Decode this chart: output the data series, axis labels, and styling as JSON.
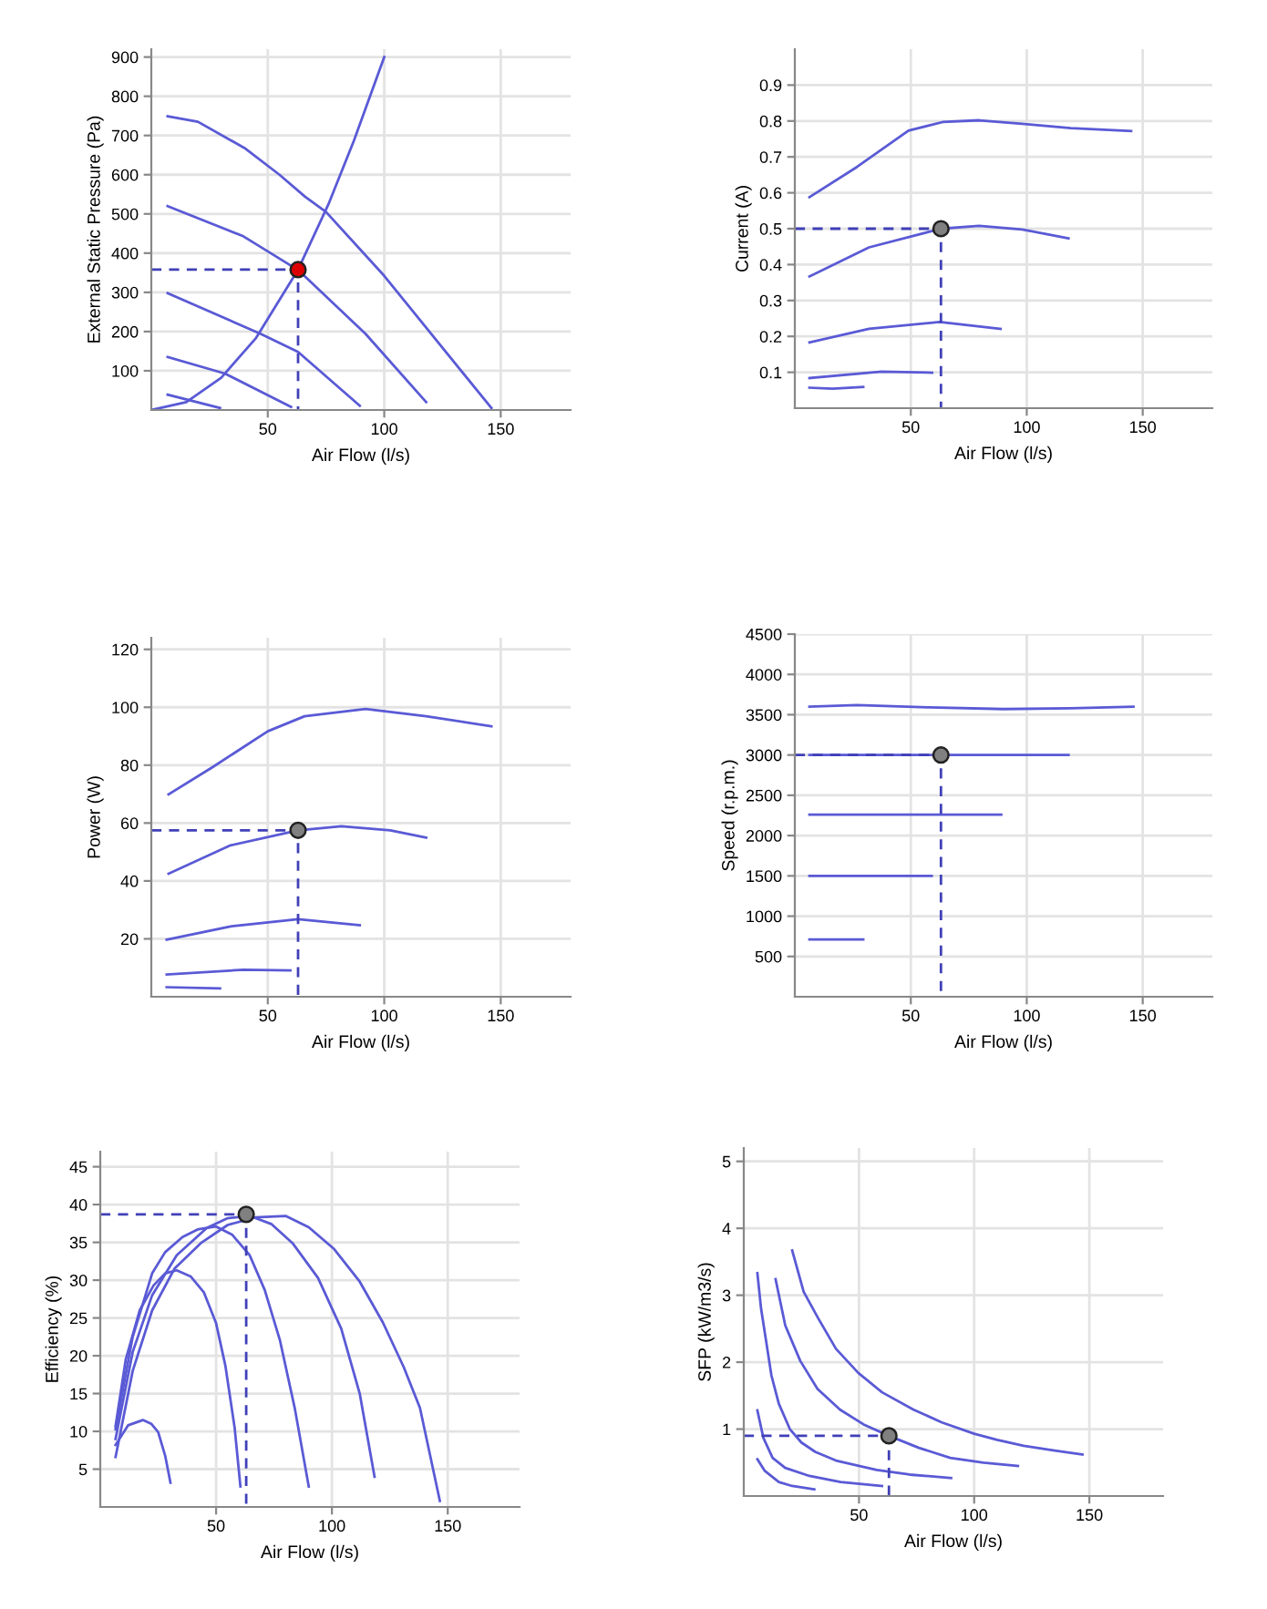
{
  "chart_data": [
    {
      "type": "line",
      "xlabel": "Air Flow (l/s)",
      "ylabel": "External Static Pressure (Pa)",
      "xlim": [
        0,
        180
      ],
      "ylim": [
        0,
        920
      ],
      "xticks": [
        50,
        100,
        150
      ],
      "yticks": [
        100,
        200,
        300,
        400,
        500,
        600,
        700,
        800,
        900
      ],
      "grid": true,
      "series": [
        {
          "color": "#5a5ad6",
          "x": [
            7,
            20,
            40,
            55,
            66,
            75,
            100,
            118,
            146
          ],
          "values": [
            749,
            735,
            668,
            600,
            544,
            505,
            342,
            210,
            5
          ]
        },
        {
          "color": "#5a5ad6",
          "x": [
            7,
            39.5,
            63,
            92,
            118
          ],
          "values": [
            520,
            443,
            357,
            194,
            20
          ]
        },
        {
          "color": "#5a5ad6",
          "x": [
            7,
            47,
            63,
            89.5
          ],
          "values": [
            298,
            194,
            148,
            11
          ]
        },
        {
          "color": "#5a5ad6",
          "x": [
            7,
            31.6,
            60
          ],
          "values": [
            135,
            93,
            8
          ]
        },
        {
          "color": "#5a5ad6",
          "x": [
            7,
            29.5
          ],
          "values": [
            39,
            5
          ]
        },
        {
          "color": "#5a5ad6",
          "x": [
            0,
            15,
            30,
            45,
            63,
            76,
            87,
            100
          ],
          "values": [
            0,
            20,
            82,
            184,
            358,
            524,
            687,
            900
          ]
        },
        {
          "color": "#4040b8",
          "line_style": "dashed",
          "x": [
            0,
            63,
            63
          ],
          "values": [
            358,
            358,
            0
          ]
        },
        {
          "type": "scatter",
          "color": "#dd0000",
          "marker": "circle",
          "x": [
            63
          ],
          "values": [
            358
          ]
        }
      ]
    },
    {
      "type": "line",
      "xlabel": "Air Flow (l/s)",
      "ylabel": "Current (A)",
      "xlim": [
        0,
        180
      ],
      "ylim": [
        0,
        1.0
      ],
      "xticks": [
        50,
        100,
        150
      ],
      "yticks": [
        0.1,
        0.2,
        0.3,
        0.4,
        0.5,
        0.6,
        0.7,
        0.8,
        0.9
      ],
      "grid": true,
      "series": [
        {
          "color": "#5a5ad6",
          "x": [
            6.3,
            26.8,
            49,
            63.7,
            79.5,
            98,
            119,
            145
          ],
          "values": [
            0.588,
            0.672,
            0.773,
            0.797,
            0.802,
            0.792,
            0.78,
            0.772
          ]
        },
        {
          "color": "#5a5ad6",
          "x": [
            6.3,
            32,
            63,
            79.5,
            98,
            118
          ],
          "values": [
            0.367,
            0.448,
            0.5,
            0.508,
            0.498,
            0.473
          ]
        },
        {
          "color": "#5a5ad6",
          "x": [
            6.3,
            32,
            62.4,
            88.7
          ],
          "values": [
            0.183,
            0.221,
            0.24,
            0.221
          ]
        },
        {
          "color": "#5a5ad6",
          "x": [
            6.3,
            37.4,
            59.2
          ],
          "values": [
            0.084,
            0.102,
            0.099
          ]
        },
        {
          "color": "#5a5ad6",
          "x": [
            6.3,
            16.3,
            29.5
          ],
          "values": [
            0.057,
            0.054,
            0.059
          ]
        },
        {
          "color": "#4040b8",
          "line_style": "dashed",
          "x": [
            0,
            63,
            63
          ],
          "values": [
            0.5,
            0.5,
            0
          ]
        },
        {
          "type": "scatter",
          "color": "#808080",
          "marker": "circle",
          "x": [
            63
          ],
          "values": [
            0.5
          ]
        }
      ]
    },
    {
      "type": "line",
      "xlabel": "Air Flow (l/s)",
      "ylabel": "Power (W)",
      "xlim": [
        0,
        180
      ],
      "ylim": [
        0,
        124
      ],
      "xticks": [
        50,
        100,
        150
      ],
      "yticks": [
        20,
        40,
        60,
        80,
        100,
        120
      ],
      "grid": true,
      "series": [
        {
          "color": "#5a5ad6",
          "x": [
            7.4,
            26.3,
            50,
            65.8,
            92,
            118,
            146
          ],
          "values": [
            69.9,
            79.3,
            91.7,
            96.9,
            99.4,
            96.9,
            93.4
          ]
        },
        {
          "color": "#5a5ad6",
          "x": [
            7.4,
            34,
            63,
            81.6,
            102.6,
            118
          ],
          "values": [
            42.5,
            52.3,
            57.5,
            58.9,
            57.5,
            55
          ]
        },
        {
          "color": "#5a5ad6",
          "x": [
            6.6,
            34,
            63,
            89.5
          ],
          "values": [
            19.7,
            24.3,
            26.8,
            24.7
          ]
        },
        {
          "color": "#5a5ad6",
          "x": [
            6.6,
            39.5,
            59.7
          ],
          "values": [
            7.7,
            9.3,
            9.1
          ]
        },
        {
          "color": "#5a5ad6",
          "x": [
            6.6,
            29.5
          ],
          "values": [
            3.3,
            2.9
          ]
        },
        {
          "color": "#4040b8",
          "line_style": "dashed",
          "x": [
            0,
            63,
            63
          ],
          "values": [
            57.5,
            57.5,
            0
          ]
        },
        {
          "type": "scatter",
          "color": "#808080",
          "marker": "circle",
          "x": [
            63
          ],
          "values": [
            57.5
          ]
        }
      ]
    },
    {
      "type": "line",
      "xlabel": "Air Flow (l/s)",
      "ylabel": "Speed (r.p.m.)",
      "xlim": [
        0,
        180
      ],
      "ylim": [
        0,
        4500
      ],
      "xticks": [
        50,
        100,
        150
      ],
      "yticks": [
        500,
        1000,
        1500,
        2000,
        2500,
        3000,
        3500,
        4000,
        4500
      ],
      "grid": true,
      "series": [
        {
          "color": "#5a5ad6",
          "x": [
            6.3,
            26.8,
            58,
            90,
            119,
            146
          ],
          "values": [
            3600,
            3620,
            3590,
            3570,
            3580,
            3600
          ]
        },
        {
          "color": "#5a5ad6",
          "x": [
            6.3,
            118
          ],
          "values": [
            3000,
            3000
          ]
        },
        {
          "color": "#5a5ad6",
          "x": [
            6.3,
            89
          ],
          "values": [
            2260,
            2260
          ]
        },
        {
          "color": "#5a5ad6",
          "x": [
            6.3,
            59
          ],
          "values": [
            1500,
            1500
          ]
        },
        {
          "color": "#5a5ad6",
          "x": [
            6.3,
            29.5
          ],
          "values": [
            710,
            710
          ]
        },
        {
          "color": "#4040b8",
          "line_style": "dashed",
          "x": [
            0,
            63,
            63
          ],
          "values": [
            3000,
            3000,
            0
          ]
        },
        {
          "type": "scatter",
          "color": "#808080",
          "marker": "circle",
          "x": [
            63
          ],
          "values": [
            3000
          ]
        }
      ]
    },
    {
      "type": "line",
      "xlabel": "Air Flow (l/s)",
      "ylabel": "Efficiency (%)",
      "xlim": [
        0,
        181
      ],
      "ylim": [
        0,
        47
      ],
      "xticks": [
        50,
        100,
        150
      ],
      "yticks": [
        5,
        10,
        15,
        20,
        25,
        30,
        35,
        40,
        45
      ],
      "grid": true,
      "series": [
        {
          "color": "#5a5ad6",
          "x": [
            6.6,
            14,
            22.4,
            32,
            43.4,
            55,
            67,
            80,
            90,
            101,
            112,
            122,
            131,
            138,
            146.6
          ],
          "values": [
            6.6,
            18,
            26,
            31.5,
            34.9,
            37.3,
            38.3,
            38.5,
            37,
            34.1,
            29.8,
            24.4,
            18.5,
            13.1,
            0.8
          ]
        },
        {
          "color": "#5a5ad6",
          "x": [
            6.6,
            14,
            22.4,
            33,
            46,
            55,
            64.5,
            74,
            83,
            94,
            104,
            112,
            118.4
          ],
          "values": [
            9,
            20.5,
            28,
            33.3,
            36.9,
            38.2,
            38.5,
            37.4,
            34.9,
            30.3,
            23.6,
            15,
            4
          ]
        },
        {
          "color": "#5a5ad6",
          "x": [
            6.6,
            14,
            22.4,
            28,
            35.5,
            42,
            50,
            57,
            64.5,
            71,
            77.6,
            84,
            90
          ],
          "values": [
            10.3,
            22.5,
            30.9,
            33.7,
            35.7,
            36.7,
            37.1,
            36,
            33.3,
            28.7,
            22,
            13,
            2.7
          ]
        },
        {
          "color": "#5a5ad6",
          "x": [
            6.6,
            11,
            17,
            23,
            28,
            33,
            39,
            44.7,
            50,
            54,
            58,
            60.5
          ],
          "values": [
            10.7,
            19.5,
            26,
            29.3,
            30.9,
            31.3,
            30.5,
            28.4,
            24.3,
            18.7,
            10.5,
            2.7
          ]
        },
        {
          "color": "#5a5ad6",
          "x": [
            6.6,
            12,
            18.4,
            22,
            25,
            28,
            30.3
          ],
          "values": [
            8.2,
            10.8,
            11.5,
            11,
            9.9,
            6.8,
            3.2
          ]
        },
        {
          "color": "#4040b8",
          "line_style": "dashed",
          "x": [
            0,
            63,
            63
          ],
          "values": [
            38.7,
            38.7,
            0
          ]
        },
        {
          "type": "scatter",
          "color": "#808080",
          "marker": "circle",
          "x": [
            63
          ],
          "values": [
            38.7
          ]
        }
      ]
    },
    {
      "type": "line",
      "xlabel": "Air Flow (l/s)",
      "ylabel": "SFP (kW/m3/s)",
      "xlim": [
        0,
        182
      ],
      "ylim": [
        0,
        5.2
      ],
      "xticks": [
        50,
        100,
        150
      ],
      "yticks": [
        1,
        2,
        3,
        4,
        5
      ],
      "grid": true,
      "series": [
        {
          "color": "#5a5ad6",
          "x": [
            21,
            26,
            32.4,
            40,
            49.7,
            60,
            73.7,
            86,
            100,
            110,
            121.5,
            135,
            147
          ],
          "values": [
            3.67,
            3.05,
            2.65,
            2.2,
            1.84,
            1.55,
            1.29,
            1.1,
            0.93,
            0.84,
            0.75,
            0.68,
            0.62
          ]
        },
        {
          "color": "#5a5ad6",
          "x": [
            13.8,
            18,
            24.5,
            32,
            41.8,
            52,
            63,
            76,
            89.6,
            104,
            119
          ],
          "values": [
            3.24,
            2.55,
            2.02,
            1.6,
            1.29,
            1.07,
            0.9,
            0.72,
            0.57,
            0.5,
            0.45
          ]
        },
        {
          "color": "#5a5ad6",
          "x": [
            5.9,
            7.5,
            9.8,
            12,
            15.2,
            20,
            25,
            31,
            40,
            57.7,
            72,
            90
          ],
          "values": [
            3.33,
            2.8,
            2.29,
            1.8,
            1.38,
            1.0,
            0.8,
            0.66,
            0.53,
            0.39,
            0.32,
            0.27
          ]
        },
        {
          "color": "#5a5ad6",
          "x": [
            5.9,
            8.5,
            12.5,
            18,
            28.5,
            42,
            60
          ],
          "values": [
            1.28,
            0.87,
            0.57,
            0.42,
            0.3,
            0.21,
            0.15
          ]
        },
        {
          "color": "#5a5ad6",
          "x": [
            5.9,
            9,
            15.2,
            21,
            30.6
          ],
          "values": [
            0.55,
            0.38,
            0.21,
            0.15,
            0.1
          ]
        },
        {
          "color": "#4040b8",
          "line_style": "dashed",
          "x": [
            0,
            63,
            63
          ],
          "values": [
            0.9,
            0.9,
            0
          ]
        },
        {
          "type": "scatter",
          "color": "#808080",
          "marker": "circle",
          "x": [
            63
          ],
          "values": [
            0.9
          ]
        }
      ]
    }
  ]
}
